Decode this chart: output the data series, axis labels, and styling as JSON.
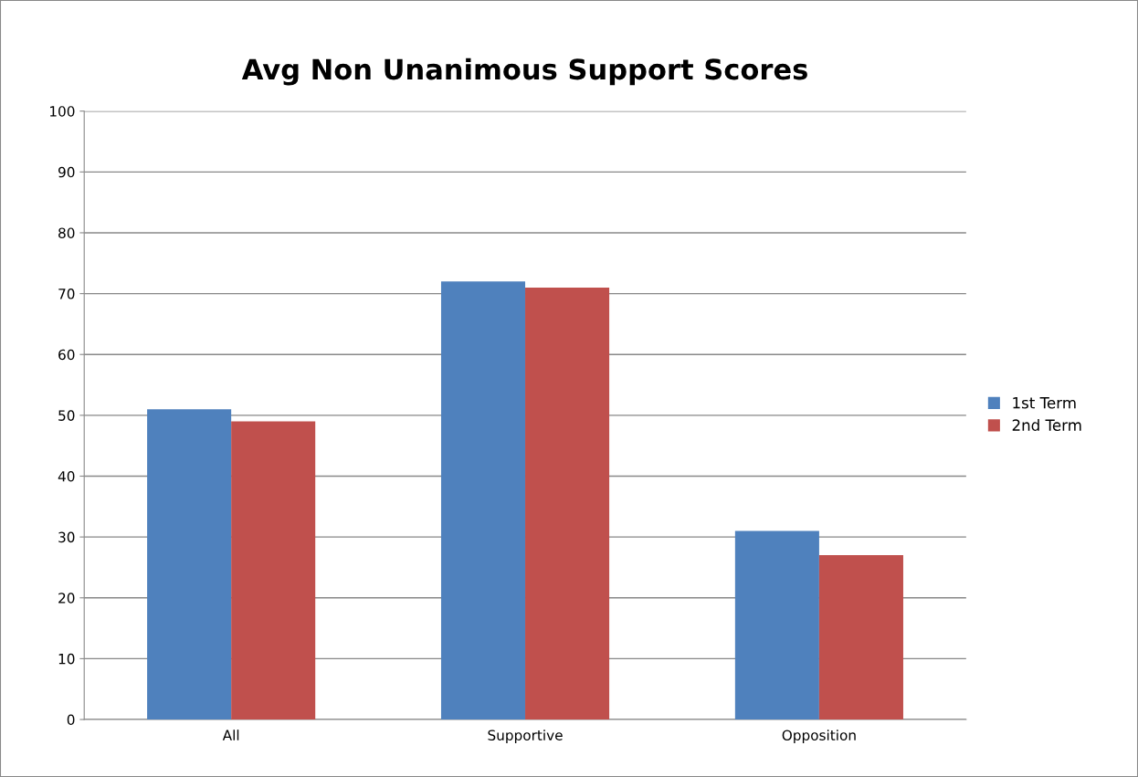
{
  "chart_data": {
    "type": "bar",
    "title": "Avg Non Unanimous Support Scores",
    "categories": [
      "All",
      "Supportive",
      "Opposition"
    ],
    "series": [
      {
        "name": "1st Term",
        "color": "#4f81bd",
        "values": [
          51,
          72,
          31
        ]
      },
      {
        "name": "2nd Term",
        "color": "#c0504d",
        "values": [
          49,
          71,
          27
        ]
      }
    ],
    "ylim": [
      0,
      100
    ],
    "yticks": [
      0,
      10,
      20,
      30,
      40,
      50,
      60,
      70,
      80,
      90,
      100
    ],
    "grid": "y",
    "legend": "right"
  }
}
